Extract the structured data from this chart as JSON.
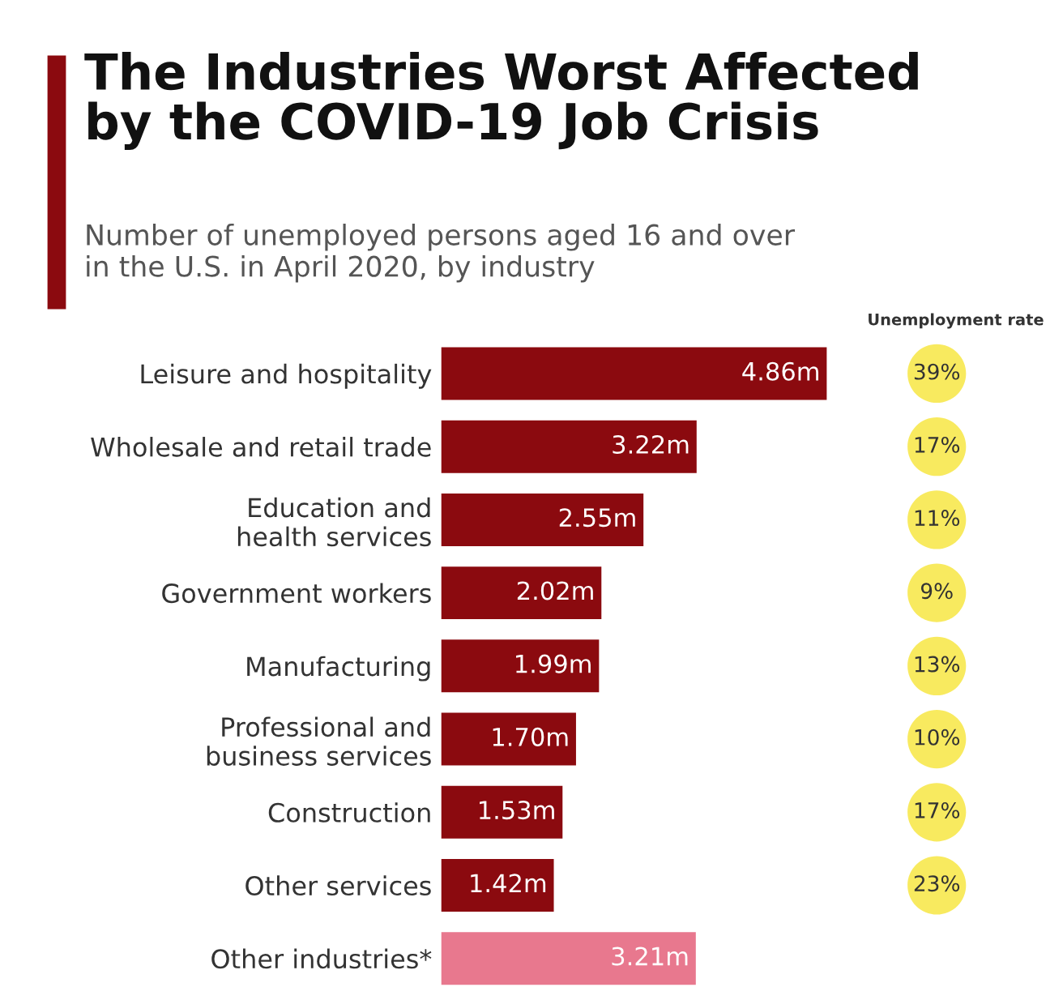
{
  "chart_data": {
    "type": "bar",
    "orientation": "horizontal",
    "title": "The Industries Worst Affected\nby the COVID-19 Job Crisis",
    "subtitle": "Number of unemployed persons aged 16 and over\nin the U.S. in April 2020, by industry",
    "categories": [
      "Leisure and hospitality",
      "Wholesale and retail trade",
      "Education and\nhealth services",
      "Government workers",
      "Manufacturing",
      "Professional and\nbusiness services",
      "Construction",
      "Other services",
      "Other industries*"
    ],
    "values": [
      4.86,
      3.22,
      2.55,
      2.02,
      1.99,
      1.7,
      1.53,
      1.42,
      3.21
    ],
    "colors": [
      "#8b0a0f",
      "#8b0a0f",
      "#8b0a0f",
      "#8b0a0f",
      "#8b0a0f",
      "#8b0a0f",
      "#8b0a0f",
      "#8b0a0f",
      "#e8788e"
    ],
    "value_labels": [
      "4.86m",
      "3.22m",
      "2.55m",
      "2.02m",
      "1.99m",
      "1.70m",
      "1.53m",
      "1.42m",
      "3.21m"
    ],
    "annotations": [
      "Unemployment rate",
      "39%",
      "17%",
      "11%",
      "9%",
      "13%",
      "10%",
      "17%",
      "23%"
    ],
    "legend": false,
    "grid": false
  }
}
